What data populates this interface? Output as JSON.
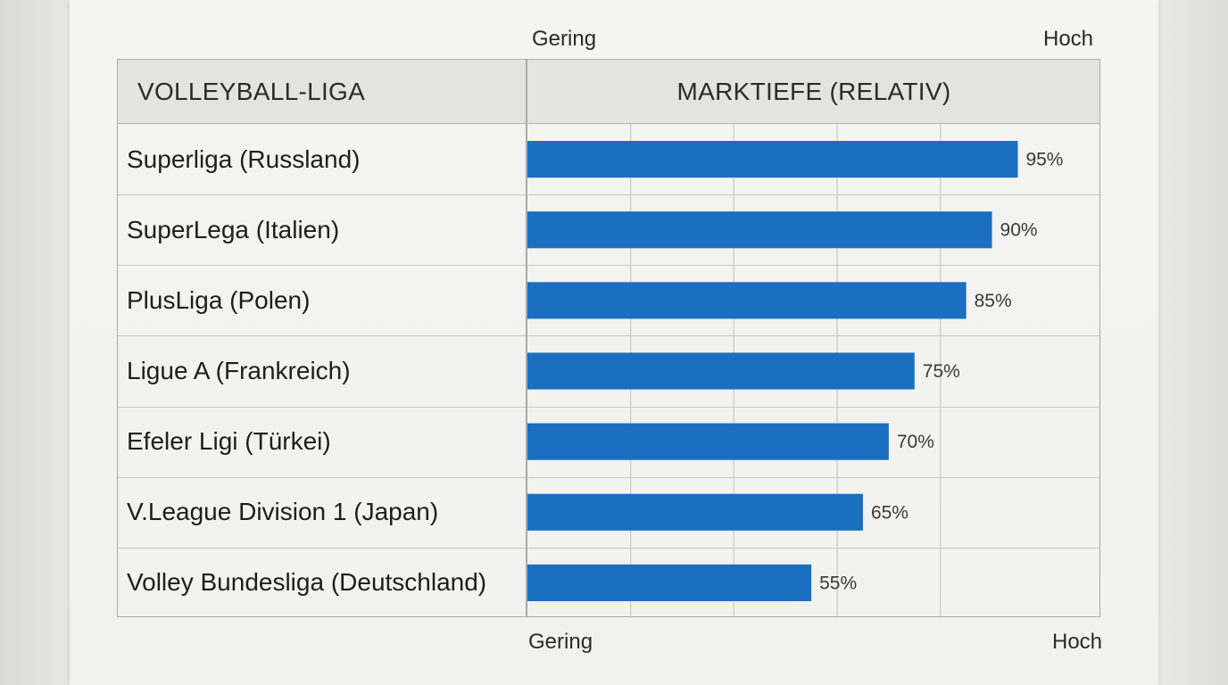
{
  "chart_data": {
    "type": "bar",
    "orientation": "horizontal",
    "header": {
      "category_column": "VOLLEYBALL-LIGA",
      "value_column": "MARKTIEFE (RELATIV)"
    },
    "scale_labels": {
      "top_low": "Gering",
      "top_high": "Hoch",
      "bottom_low": "Gering",
      "bottom_high": "Hoch"
    },
    "categories": [
      "Superliga (Russland)",
      "SuperLega (Italien)",
      "PlusLiga (Polen)",
      "Ligue A (Frankreich)",
      "Efeler Ligi (Türkei)",
      "V.League Division 1 (Japan)",
      "Volley Bundesliga (Deutschland)"
    ],
    "values": [
      95,
      90,
      85,
      75,
      70,
      65,
      55
    ],
    "value_labels": [
      "95%",
      "90%",
      "85%",
      "75%",
      "70%",
      "65%",
      "55%"
    ],
    "unit": "%",
    "xlim": [
      0,
      111
    ],
    "grid": true,
    "bar_color": "#1a6fc0"
  }
}
